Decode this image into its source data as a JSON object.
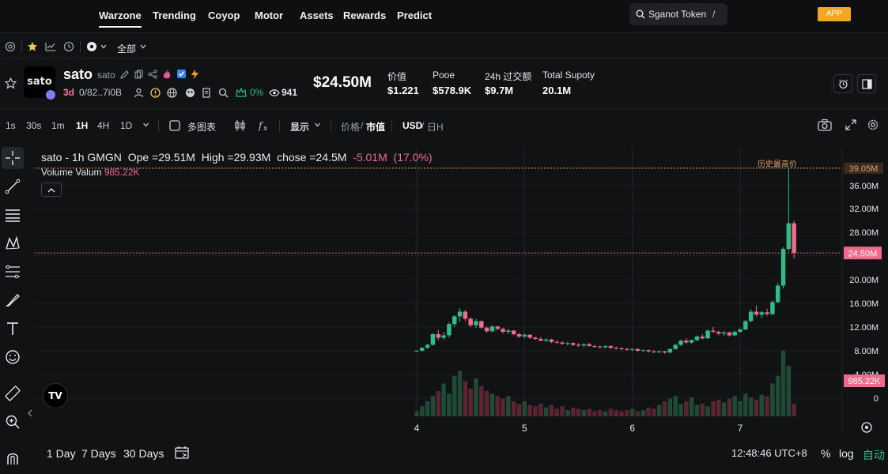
{
  "nav": {
    "items": [
      "Warzone",
      "Trending",
      "Coyop",
      "Motor",
      "Assets",
      "Rewards",
      "Predict"
    ],
    "search_label": "Sganot Token",
    "search_shortcut": "/",
    "app_label": "APP"
  },
  "subbar": {
    "filter_label": "全部"
  },
  "token": {
    "avatar_text": "sato",
    "name": "sato",
    "symbol": "sato",
    "age": "3d",
    "address": "0/82..7i0B",
    "pct": "0%",
    "holders": "941",
    "price_big": "$24.50M",
    "stats": [
      {
        "label": "价值",
        "value": "$1.221"
      },
      {
        "label": "Pooe",
        "value": "$578.9K"
      },
      {
        "label": "24h 过交额",
        "value": "$9.7M"
      },
      {
        "label": "Total Supoty",
        "value": "20.1M"
      }
    ]
  },
  "toolbar": {
    "timeframes": [
      "1s",
      "30s",
      "1m",
      "1H",
      "4H",
      "1D"
    ],
    "selected_timeframe": "1H",
    "multi_chart": "多图表",
    "display": "显示",
    "price_label": "价格",
    "mcap_label": "市值",
    "usd_label": "USD",
    "sol_label": "日H"
  },
  "legend": {
    "pair": "sato - 1h GMGN",
    "open": "Ope =29.51M",
    "high": "High =29.93M",
    "close": "chose =24.5M",
    "change": "-5.01M",
    "change_pct": "(17.0%)",
    "volume_label": "Volume Valum",
    "volume_value": "985.22K"
  },
  "chart_data": {
    "type": "candlestick",
    "y_axis_ticks": [
      "36.00M",
      "32.00M",
      "28.00M",
      "24.00M",
      "20.00M",
      "16.00M",
      "12.00M",
      "8.00M",
      "4.00M",
      "0"
    ],
    "x_axis_ticks": [
      "4",
      "5",
      "6",
      "7"
    ],
    "ath_label": "历史最高价",
    "ath_value": "39.05M",
    "current_value": "24.50M",
    "volume_value": "985.22K",
    "colors": {
      "up": "#2ebd85",
      "down": "#f06a8c"
    },
    "candles": [
      [
        4.0,
        8.0,
        8.1,
        7.9,
        8.0
      ],
      [
        4.05,
        8.0,
        8.6,
        7.9,
        8.5
      ],
      [
        4.1,
        8.5,
        9.2,
        8.3,
        9.0
      ],
      [
        4.15,
        9.0,
        11.0,
        8.9,
        10.8
      ],
      [
        4.2,
        10.8,
        11.5,
        9.8,
        10.2
      ],
      [
        4.25,
        10.2,
        11.2,
        9.8,
        10.6
      ],
      [
        4.3,
        10.6,
        12.8,
        10.2,
        12.5
      ],
      [
        4.35,
        12.5,
        14.0,
        12.0,
        13.8
      ],
      [
        4.4,
        13.8,
        15.2,
        12.9,
        14.6
      ],
      [
        4.45,
        14.6,
        14.9,
        13.0,
        13.4
      ],
      [
        4.5,
        13.4,
        13.7,
        12.0,
        12.3
      ],
      [
        4.55,
        12.3,
        13.4,
        11.8,
        13.0
      ],
      [
        4.6,
        13.0,
        13.1,
        11.7,
        11.9
      ],
      [
        4.65,
        11.9,
        12.1,
        11.0,
        11.3
      ],
      [
        4.7,
        11.3,
        12.3,
        11.1,
        12.1
      ],
      [
        4.75,
        12.1,
        12.2,
        11.4,
        11.7
      ],
      [
        4.8,
        11.7,
        11.9,
        10.9,
        11.2
      ],
      [
        4.85,
        11.2,
        11.7,
        10.8,
        11.4
      ],
      [
        4.9,
        11.4,
        11.5,
        10.6,
        10.8
      ],
      [
        4.95,
        10.8,
        11.0,
        10.2,
        10.4
      ],
      [
        5.0,
        10.4,
        10.9,
        10.1,
        10.7
      ],
      [
        5.05,
        10.7,
        10.8,
        10.0,
        10.2
      ],
      [
        5.1,
        10.2,
        10.4,
        9.8,
        10.0
      ],
      [
        5.15,
        10.0,
        10.3,
        9.6,
        9.7
      ],
      [
        5.2,
        9.7,
        10.1,
        9.5,
        9.9
      ],
      [
        5.25,
        9.9,
        10.0,
        9.3,
        9.5
      ],
      [
        5.3,
        9.5,
        9.8,
        9.2,
        9.4
      ],
      [
        5.35,
        9.4,
        9.6,
        9.0,
        9.2
      ],
      [
        5.4,
        9.2,
        9.5,
        8.9,
        9.3
      ],
      [
        5.45,
        9.3,
        9.4,
        8.8,
        9.0
      ],
      [
        5.5,
        9.0,
        9.3,
        8.7,
        8.9
      ],
      [
        5.55,
        8.9,
        9.2,
        8.6,
        9.1
      ],
      [
        5.6,
        9.1,
        9.3,
        8.7,
        8.8
      ],
      [
        5.65,
        8.8,
        9.0,
        8.5,
        8.7
      ],
      [
        5.7,
        8.7,
        8.9,
        8.4,
        8.6
      ],
      [
        5.75,
        8.6,
        8.9,
        8.4,
        8.8
      ],
      [
        5.8,
        8.8,
        8.9,
        8.3,
        8.5
      ],
      [
        5.85,
        8.5,
        8.7,
        8.2,
        8.4
      ],
      [
        5.9,
        8.4,
        8.6,
        8.1,
        8.3
      ],
      [
        5.95,
        8.3,
        8.5,
        8.0,
        8.2
      ],
      [
        6.0,
        8.2,
        8.4,
        7.9,
        8.3
      ],
      [
        6.05,
        8.3,
        8.4,
        7.8,
        8.0
      ],
      [
        6.1,
        8.0,
        8.2,
        7.8,
        8.1
      ],
      [
        6.15,
        8.1,
        8.2,
        7.7,
        7.9
      ],
      [
        6.2,
        7.9,
        8.1,
        7.6,
        7.8
      ],
      [
        6.25,
        7.8,
        8.0,
        7.6,
        7.9
      ],
      [
        6.3,
        7.9,
        8.0,
        7.5,
        7.7
      ],
      [
        6.35,
        7.7,
        8.4,
        7.6,
        8.3
      ],
      [
        6.4,
        8.3,
        9.2,
        8.2,
        9.0
      ],
      [
        6.45,
        9.0,
        9.9,
        8.8,
        9.7
      ],
      [
        6.5,
        9.7,
        10.1,
        9.2,
        9.4
      ],
      [
        6.55,
        9.4,
        9.9,
        9.2,
        9.8
      ],
      [
        6.6,
        9.8,
        10.6,
        9.6,
        10.4
      ],
      [
        6.65,
        10.4,
        10.8,
        9.9,
        10.1
      ],
      [
        6.7,
        10.1,
        11.6,
        10.0,
        11.4
      ],
      [
        6.75,
        11.4,
        12.0,
        11.0,
        11.2
      ],
      [
        6.8,
        11.2,
        11.4,
        10.6,
        10.9
      ],
      [
        6.85,
        10.9,
        11.3,
        10.5,
        11.1
      ],
      [
        6.9,
        11.1,
        11.2,
        10.4,
        10.6
      ],
      [
        6.95,
        10.6,
        11.4,
        10.5,
        11.2
      ],
      [
        7.0,
        11.2,
        11.8,
        11.0,
        11.6
      ],
      [
        7.05,
        11.6,
        13.2,
        11.5,
        13.0
      ],
      [
        7.1,
        13.0,
        15.0,
        12.8,
        14.6
      ],
      [
        7.15,
        14.6,
        15.6,
        13.8,
        14.1
      ],
      [
        7.2,
        14.1,
        14.8,
        13.5,
        14.5
      ],
      [
        7.25,
        14.5,
        15.1,
        13.9,
        14.2
      ],
      [
        7.3,
        14.2,
        16.5,
        14.0,
        16.2
      ],
      [
        7.35,
        16.2,
        19.5,
        16.0,
        19.0
      ],
      [
        7.4,
        19.0,
        25.5,
        18.5,
        25.2
      ],
      [
        7.45,
        25.2,
        39.05,
        24.8,
        29.51
      ],
      [
        7.5,
        29.51,
        29.93,
        23.5,
        24.5
      ]
    ],
    "volumes": [
      0.4,
      0.8,
      1.2,
      1.6,
      2.0,
      2.6,
      1.8,
      3.2,
      3.6,
      2.8,
      2.2,
      3.0,
      2.4,
      2.0,
      1.8,
      1.6,
      1.4,
      1.6,
      1.2,
      1.0,
      1.2,
      0.9,
      0.8,
      1.0,
      0.7,
      0.9,
      0.6,
      0.8,
      0.5,
      0.7,
      0.6,
      0.5,
      0.6,
      0.4,
      0.5,
      0.4,
      0.6,
      0.5,
      0.4,
      0.5,
      0.6,
      0.4,
      0.5,
      0.7,
      0.6,
      0.9,
      1.2,
      1.4,
      1.6,
      1.0,
      1.2,
      1.5,
      0.9,
      1.0,
      0.8,
      1.2,
      1.3,
      1.1,
      1.4,
      1.6,
      1.2,
      1.8,
      1.5,
      1.3,
      1.7,
      1.6,
      2.6,
      3.2,
      5.2,
      4.0,
      0.985
    ]
  },
  "bottom": {
    "ranges": [
      "1 Day",
      "7 Days",
      "30 Days"
    ],
    "time": "12:48:46 UTC+8",
    "pct": "%",
    "log": "log",
    "auto": "自动"
  }
}
